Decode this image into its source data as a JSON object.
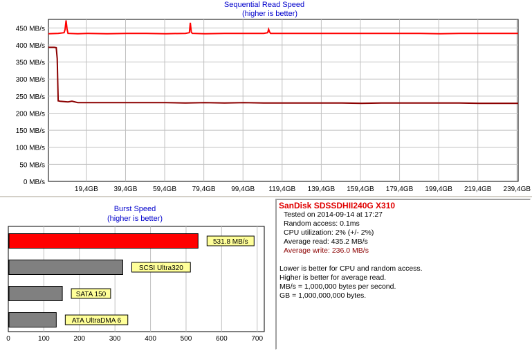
{
  "chart_data": [
    {
      "type": "line",
      "title": "Sequential Read Speed",
      "subtitle": "(higher is better)",
      "xlabel": "",
      "ylabel": "",
      "xlim": [
        0,
        240
      ],
      "ylim": [
        0,
        475
      ],
      "yticks": [
        0,
        50,
        100,
        150,
        200,
        250,
        300,
        350,
        400,
        450
      ],
      "ytick_labels": [
        "0 MB/s",
        "50 MB/s",
        "100 MB/s",
        "150 MB/s",
        "200 MB/s",
        "250 MB/s",
        "300 MB/s",
        "350 MB/s",
        "400 MB/s",
        "450 MB/s"
      ],
      "xticks": [
        19.4,
        39.4,
        59.4,
        79.4,
        99.4,
        119.4,
        139.4,
        159.4,
        179.4,
        199.4,
        219.4,
        239.4
      ],
      "xtick_labels": [
        "19,4GB",
        "39,4GB",
        "59,4GB",
        "79,4GB",
        "99,4GB",
        "119,4GB",
        "139,4GB",
        "159,4GB",
        "179,4GB",
        "199,4GB",
        "219,4GB",
        "239,4GB"
      ],
      "grid": true,
      "series": [
        {
          "color": "#ff0000",
          "x": [
            0,
            5,
            8,
            8.5,
            9,
            9.5,
            10,
            15,
            20,
            30,
            40,
            50,
            60,
            70,
            72,
            72.5,
            73,
            73.5,
            80,
            90,
            100,
            110,
            112,
            112.5,
            113,
            113.5,
            120,
            130,
            140,
            150,
            160,
            170,
            180,
            190,
            200,
            210,
            220,
            230,
            240
          ],
          "y": [
            433,
            434,
            436,
            445,
            472,
            447,
            434,
            433,
            434,
            433,
            434,
            434,
            433,
            434,
            436,
            465,
            438,
            434,
            433,
            434,
            434,
            434,
            436,
            446,
            438,
            434,
            434,
            434,
            434,
            434,
            434,
            434,
            434,
            434,
            433,
            434,
            434,
            434,
            434
          ]
        },
        {
          "color": "#8b0000",
          "x": [
            0,
            3,
            4,
            4.5,
            5,
            6,
            10,
            12,
            15,
            20,
            30,
            40,
            50,
            60,
            70,
            80,
            90,
            100,
            110,
            120,
            130,
            140,
            150,
            160,
            170,
            180,
            190,
            200,
            210,
            220,
            230,
            240
          ],
          "y": [
            393,
            393,
            392,
            360,
            236,
            235,
            233,
            235,
            231,
            231,
            231,
            231,
            231,
            231,
            230,
            231,
            230,
            231,
            230,
            230,
            230,
            230,
            230,
            229,
            230,
            230,
            230,
            230,
            230,
            229,
            229,
            229
          ]
        }
      ]
    },
    {
      "type": "bar",
      "orientation": "horizontal",
      "title": "Burst Speed",
      "subtitle": "(higher is better)",
      "xlabel": "",
      "ylabel": "",
      "xlim": [
        0,
        720
      ],
      "xticks": [
        0,
        100,
        200,
        300,
        400,
        500,
        600,
        700
      ],
      "categories": [
        "531.8 MB/s",
        "SCSI Ultra320",
        "SATA 150",
        "ATA UltraDMA 6"
      ],
      "values": [
        531.8,
        320,
        150,
        133
      ],
      "colors": [
        "#ff0000",
        "#808080",
        "#808080",
        "#808080"
      ],
      "grid": true
    }
  ],
  "info": {
    "title": "SanDisk SDSSDHII240G X310",
    "lines": [
      {
        "text": "Tested on 2014-09-14 at 17:27",
        "color": "#000000"
      },
      {
        "text": "Random access: 0.1ms",
        "color": "#000000"
      },
      {
        "text": "CPU utilization: 2% (+/- 2%)",
        "color": "#000000"
      },
      {
        "text": "Average read: 435.2 MB/s",
        "color": "#000000"
      },
      {
        "text": "Average write: 236.0 MB/s",
        "color": "#8b0000"
      }
    ],
    "notes": [
      "Lower is better for CPU and random access.",
      "Higher is better for average read.",
      "MB/s = 1,000,000 bytes per second.",
      "GB = 1,000,000,000 bytes."
    ]
  }
}
